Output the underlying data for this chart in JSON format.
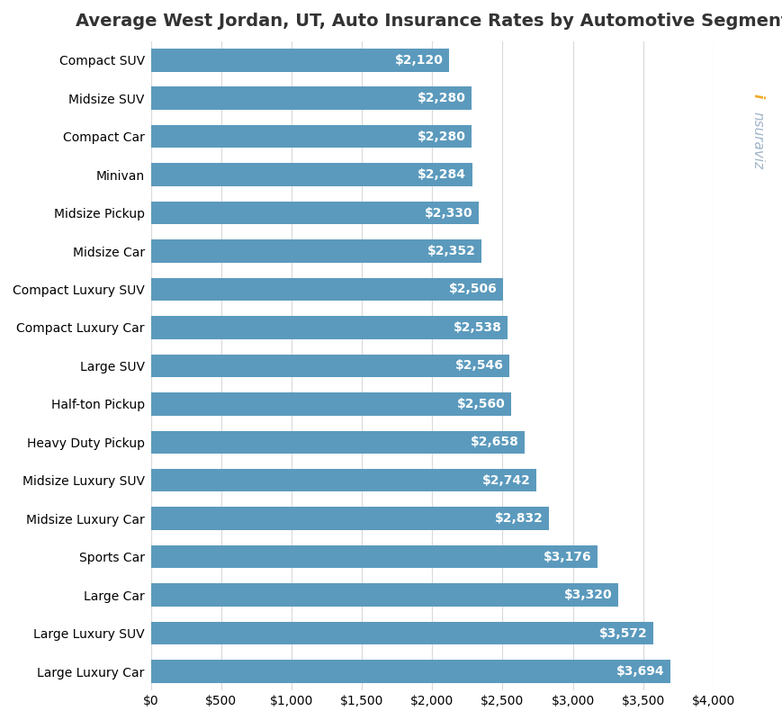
{
  "title": "Average West Jordan, UT, Auto Insurance Rates by Automotive Segment",
  "categories": [
    "Large Luxury Car",
    "Large Luxury SUV",
    "Large Car",
    "Sports Car",
    "Midsize Luxury Car",
    "Midsize Luxury SUV",
    "Heavy Duty Pickup",
    "Half-ton Pickup",
    "Large SUV",
    "Compact Luxury Car",
    "Compact Luxury SUV",
    "Midsize Car",
    "Midsize Pickup",
    "Minivan",
    "Compact Car",
    "Midsize SUV",
    "Compact SUV"
  ],
  "values": [
    3694,
    3572,
    3320,
    3176,
    2832,
    2742,
    2658,
    2560,
    2546,
    2538,
    2506,
    2352,
    2330,
    2284,
    2280,
    2280,
    2120
  ],
  "bar_color": "#5b9abd",
  "label_color": "#ffffff",
  "title_fontsize": 14,
  "label_fontsize": 10,
  "tick_fontsize": 10,
  "category_fontsize": 10,
  "xlim": [
    0,
    4000
  ],
  "xticks": [
    0,
    500,
    1000,
    1500,
    2000,
    2500,
    3000,
    3500,
    4000
  ],
  "background_color": "#ffffff",
  "grid_color": "#d9d9d9",
  "bar_height": 0.6
}
